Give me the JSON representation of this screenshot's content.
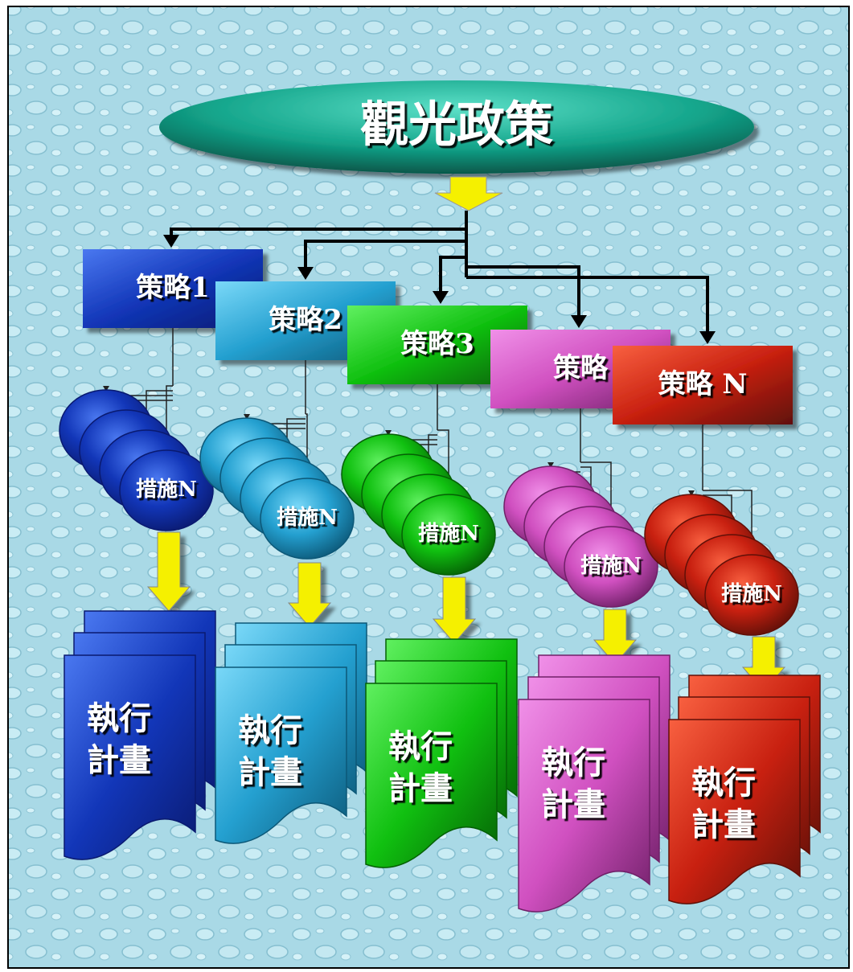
{
  "title": "觀光政策",
  "groups": [
    {
      "strategy": "策略1",
      "measure": "措施N",
      "plan": [
        "執行",
        "計畫"
      ]
    },
    {
      "strategy": "策略2",
      "measure": "措施N",
      "plan": [
        "執行",
        "計畫"
      ]
    },
    {
      "strategy": "策略3",
      "measure": "措施N",
      "plan": [
        "執行",
        "計畫"
      ]
    },
    {
      "strategy": "策略",
      "measure": "措施N",
      "plan": [
        "執行",
        "計畫"
      ]
    },
    {
      "strategy": "策略 N",
      "measure": "措施N",
      "plan": [
        "執行",
        "計畫"
      ]
    }
  ]
}
